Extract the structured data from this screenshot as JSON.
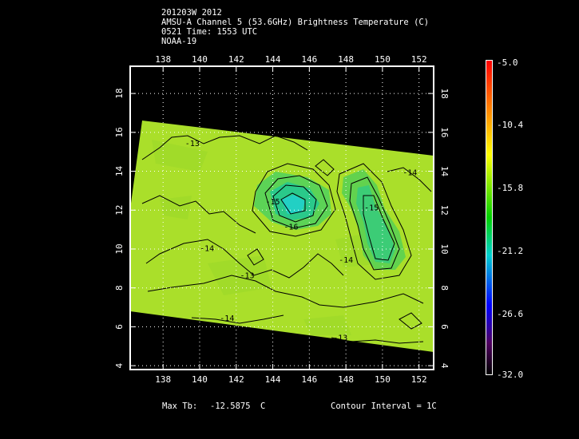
{
  "header": {
    "line1": "201203W 2012",
    "line2": "AMSU-A Channel 5 (53.6GHz) Brightness Temperature (C)",
    "line3": "0521 Time: 1553 UTC",
    "line4": "NOAA-19"
  },
  "map": {
    "lon_ticks": [
      "138",
      "140",
      "142",
      "144",
      "146",
      "148",
      "150",
      "152"
    ],
    "lat_ticks": [
      "4",
      "6",
      "8",
      "10",
      "12",
      "14",
      "16",
      "18"
    ],
    "lon_range": [
      136.2,
      152.8
    ],
    "lat_range": [
      3.8,
      19.4
    ],
    "swath_color_main": "#aadf2a",
    "swath_color_cold": "#22d89a",
    "contour_labels": [
      {
        "text": "-13",
        "lon": 139.6,
        "lat": 15.3
      },
      {
        "text": "-14",
        "lon": 140.4,
        "lat": 9.9
      },
      {
        "text": "-13",
        "lon": 142.6,
        "lat": 8.5
      },
      {
        "text": "-14",
        "lon": 141.5,
        "lat": 6.3
      },
      {
        "text": "-13",
        "lon": 147.7,
        "lat": 5.3
      },
      {
        "text": "-14",
        "lon": 151.5,
        "lat": 13.8
      },
      {
        "text": "-15",
        "lon": 149.4,
        "lat": 12.0
      },
      {
        "text": "-14",
        "lon": 148.0,
        "lat": 9.3
      },
      {
        "text": "-16",
        "lon": 145.0,
        "lat": 11.0
      },
      {
        "text": "-15",
        "lon": 144.0,
        "lat": 12.3
      }
    ]
  },
  "colorbar": {
    "labels": [
      "-5.0",
      "-10.4",
      "-15.8",
      "-21.2",
      "-26.6",
      "-32.0"
    ],
    "stops": [
      "#ff0000",
      "#ff8000",
      "#ffff00",
      "#00d000",
      "#00d0d0",
      "#0000ff",
      "#500060",
      "#000000"
    ]
  },
  "footer": {
    "max_tb_label": "Max Tb:",
    "max_tb_value": "-12.5875",
    "max_tb_unit": "C",
    "contour_interval": "Contour Interval = 1C"
  }
}
